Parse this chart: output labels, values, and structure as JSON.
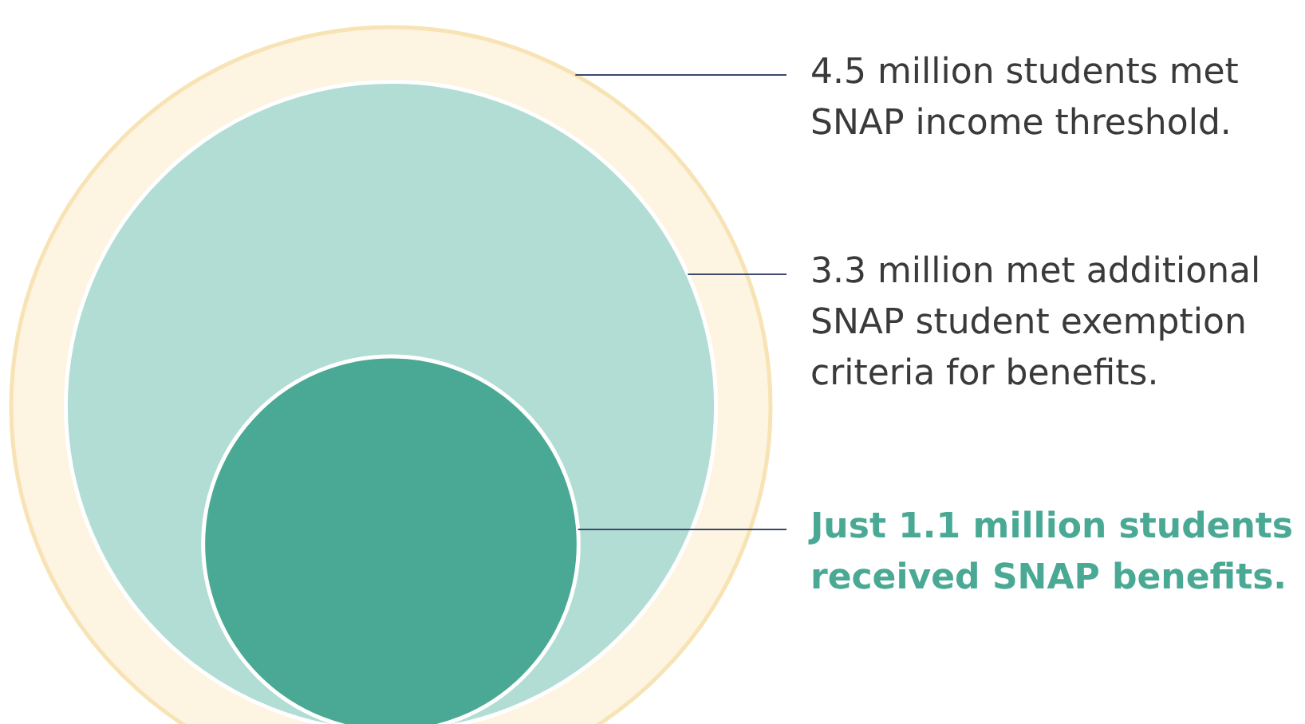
{
  "chart_data": {
    "type": "other",
    "categories": [
      "million students met SNAP income threshold.",
      "million met additional SNAP student exemption criteria for benefits.",
      "million students received SNAP benefits."
    ],
    "values": [
      4.5,
      3.3,
      1.1
    ],
    "value_labels": [
      "4.5",
      "3.3",
      "Just 1.1"
    ],
    "colors": [
      "#fdf4e2",
      "#b2ddd5",
      "#4aa994"
    ]
  }
}
